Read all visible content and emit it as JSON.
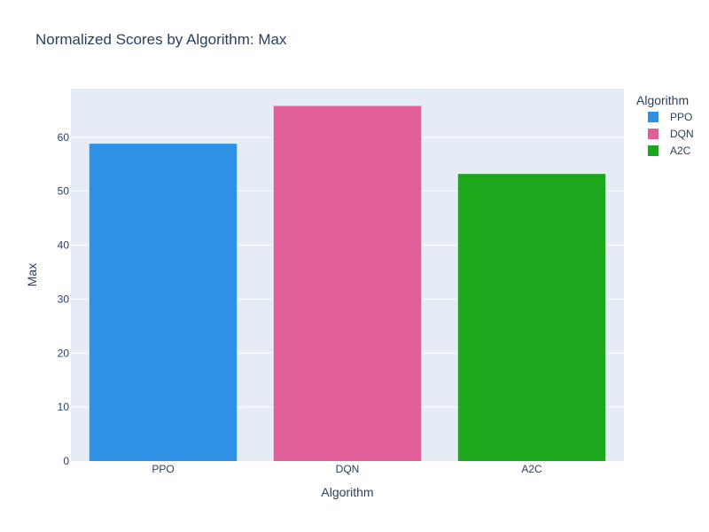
{
  "chart_data": {
    "type": "bar",
    "title": "Normalized Scores by Algorithm: Max",
    "xlabel": "Algorithm",
    "ylabel": "Max",
    "categories": [
      "PPO",
      "DQN",
      "A2C"
    ],
    "values": [
      58.8,
      65.8,
      53.2
    ],
    "colors": [
      "#2e91e5",
      "#e15f99",
      "#1ca71c"
    ],
    "ylim": [
      0,
      69
    ],
    "yticks": [
      0,
      10,
      20,
      30,
      40,
      50,
      60
    ],
    "grid": true,
    "legend": {
      "title": "Algorithm",
      "placement": "top-right",
      "entries": [
        "PPO",
        "DQN",
        "A2C"
      ]
    }
  },
  "style": {
    "plot_background": "#e5ecf6",
    "grid_color": "#ffffff",
    "text_color": "#2a3f5f"
  }
}
